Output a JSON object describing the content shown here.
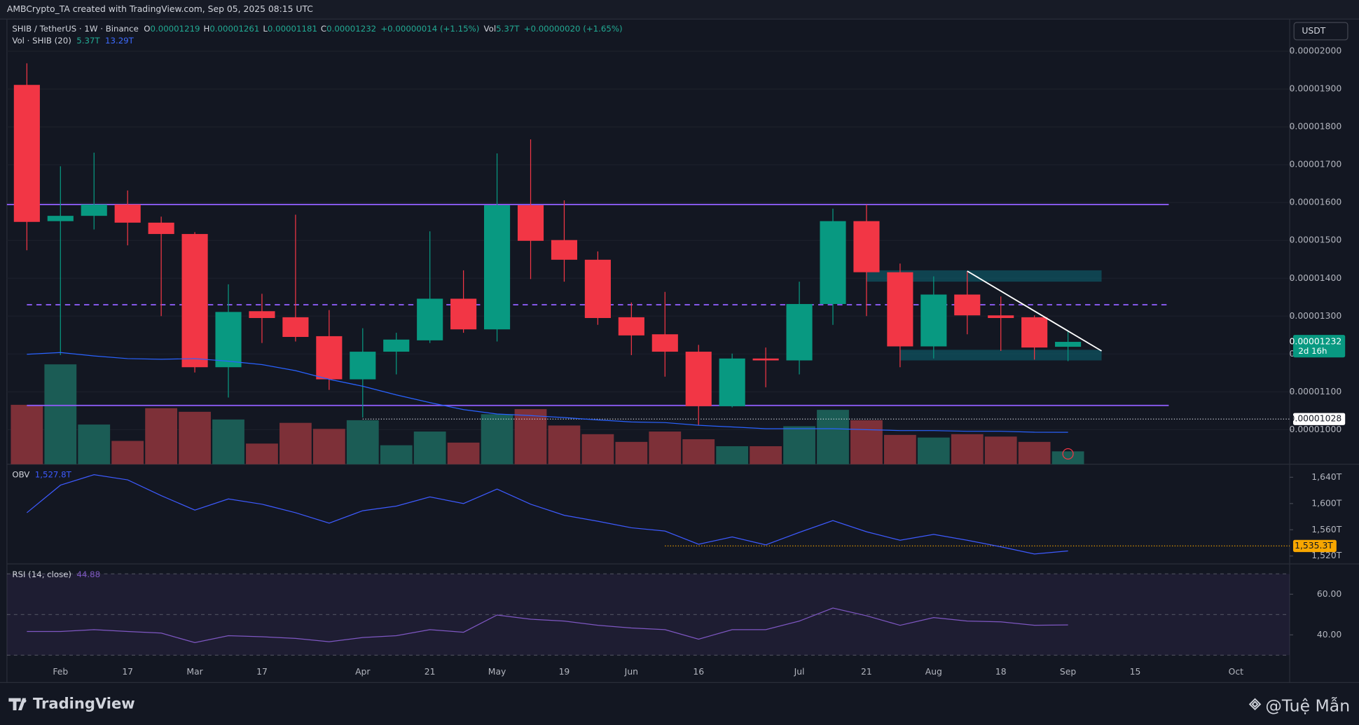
{
  "header": {
    "title": "AMBCrypto_TA created with TradingView.com, Sep 05, 2025 08:15 UTC"
  },
  "currency": "USDT",
  "footer": {
    "brand": "TradingView",
    "watermark": "@Tuệ Mẫn"
  },
  "chart_data": [
    {
      "type": "candlestick",
      "symbol": "SHIB / TetherUS · 1W · Binance",
      "legend": [
        {
          "key": "O",
          "value": "0.00001219"
        },
        {
          "key": "H",
          "value": "0.00001261"
        },
        {
          "key": "L",
          "value": "0.00001181"
        },
        {
          "key": "C",
          "value": "0.00001232"
        }
      ],
      "change": "+0.00000014 (+1.15%)",
      "volume_legend": {
        "key": "Vol",
        "value": "5.37T",
        "change": "+0.00000020 (+1.65%)"
      },
      "volume_indicator": {
        "name": "Vol · SHIB (20)",
        "value": "5.37T",
        "ma": "13.29T"
      },
      "categories": [
        null,
        "Feb",
        null,
        "17",
        null,
        "Mar",
        null,
        "17",
        null,
        null,
        "Apr",
        null,
        "21",
        null,
        "May",
        null,
        "19",
        null,
        "Jun",
        null,
        "16",
        null,
        null,
        "Jul",
        null,
        "21",
        null,
        "Aug",
        null,
        "18",
        null,
        "Sep",
        null,
        "15",
        null,
        null,
        "Oct"
      ],
      "open": [
        1.911e-05,
        1.551e-05,
        1.565e-05,
        1.595e-05,
        1.547e-05,
        1.517e-05,
        1.165e-05,
        1.313e-05,
        1.297e-05,
        1.247e-05,
        1.133e-05,
        1.206e-05,
        1.236e-05,
        1.346e-05,
        1.265e-05,
        1.593e-05,
        1.501e-05,
        1.449e-05,
        1.297e-05,
        1.252e-05,
        1.206e-05,
        1.062e-05,
        1.188e-05,
        1.183e-05,
        1.332e-05,
        1.551e-05,
        1.416e-05,
        1.22e-05,
        1.357e-05,
        1.302e-05,
        1.297e-05,
        1.219e-05,
        null,
        null,
        null,
        null,
        null
      ],
      "high": [
        1.968e-05,
        1.696e-05,
        1.732e-05,
        1.632e-05,
        1.563e-05,
        1.522e-05,
        1.384e-05,
        1.359e-05,
        1.568e-05,
        1.316e-05,
        1.268e-05,
        1.256e-05,
        1.524e-05,
        1.421e-05,
        1.73e-05,
        1.767e-05,
        1.606e-05,
        1.471e-05,
        1.336e-05,
        1.364e-05,
        1.224e-05,
        1.201e-05,
        1.217e-05,
        1.391e-05,
        1.584e-05,
        1.595e-05,
        1.439e-05,
        1.405e-05,
        1.419e-05,
        1.352e-05,
        1.302e-05,
        1.261e-05,
        null,
        null,
        null,
        null,
        null
      ],
      "low": [
        1.474e-05,
        1.197e-05,
        1.529e-05,
        1.487e-05,
        1.3e-05,
        1.151e-05,
        1.085e-05,
        1.229e-05,
        1.233e-05,
        1.105e-05,
        1.032e-05,
        1.146e-05,
        1.229e-05,
        1.256e-05,
        1.233e-05,
        1.398e-05,
        1.391e-05,
        1.277e-05,
        1.197e-05,
        1.14e-05,
        1.011e-05,
        1.059e-05,
        1.112e-05,
        1.146e-05,
        1.277e-05,
        1.3e-05,
        1.165e-05,
        1.188e-05,
        1.252e-05,
        1.208e-05,
        1.185e-05,
        1.181e-05,
        null,
        null,
        null,
        null,
        null
      ],
      "close": [
        1.549e-05,
        1.565e-05,
        1.595e-05,
        1.547e-05,
        1.517e-05,
        1.165e-05,
        1.311e-05,
        1.295e-05,
        1.245e-05,
        1.133e-05,
        1.206e-05,
        1.238e-05,
        1.346e-05,
        1.265e-05,
        1.593e-05,
        1.499e-05,
        1.449e-05,
        1.295e-05,
        1.249e-05,
        1.206e-05,
        1.062e-05,
        1.188e-05,
        1.183e-05,
        1.332e-05,
        1.551e-05,
        1.416e-05,
        1.22e-05,
        1.357e-05,
        1.302e-05,
        1.295e-05,
        1.217e-05,
        1.232e-05,
        null,
        null,
        null,
        null,
        null
      ],
      "volume": [
        24.7,
        41.5,
        16.5,
        9.7,
        23.3,
        21.8,
        18.6,
        8.6,
        17.2,
        14.7,
        18.3,
        7.9,
        13.6,
        9.0,
        20.8,
        22.9,
        16.1,
        12.5,
        9.3,
        13.6,
        10.4,
        7.5,
        7.5,
        15.8,
        22.6,
        18.3,
        12.2,
        11.1,
        12.5,
        11.5,
        9.3,
        5.37,
        null,
        null,
        null,
        null,
        null
      ],
      "volume_ma": [
        45.7,
        46.4,
        45.0,
        43.9,
        43.6,
        43.9,
        42.8,
        41.4,
        38.9,
        35.3,
        32.4,
        28.8,
        25.6,
        22.7,
        20.9,
        20.2,
        19.4,
        18.4,
        17.6,
        17.3,
        16.2,
        15.5,
        14.8,
        14.8,
        14.8,
        14.4,
        14.0,
        14.0,
        13.7,
        13.7,
        13.3,
        13.29,
        null,
        null,
        null,
        null,
        null
      ],
      "up_color": "#089981",
      "down_color": "#f23645",
      "volume_up_color": "#1b5c55",
      "volume_down_color": "#7d3038",
      "volume_ma_color": "#2962ff",
      "ylim": [
        9.085e-06,
        2.085e-05
      ],
      "yticks": [
        {
          "value": 1e-05,
          "label": "0.00001000"
        },
        {
          "value": 1.1e-05,
          "label": "0.00001100"
        },
        {
          "value": 1.2e-05,
          "label": "0.00001200"
        },
        {
          "value": 1.3e-05,
          "label": "0.00001300"
        },
        {
          "value": 1.4e-05,
          "label": "0.00001400"
        },
        {
          "value": 1.5e-05,
          "label": "0.00001500"
        },
        {
          "value": 1.6e-05,
          "label": "0.00001600"
        },
        {
          "value": 1.7e-05,
          "label": "0.00001700"
        },
        {
          "value": 1.8e-05,
          "label": "0.00001800"
        },
        {
          "value": 1.9e-05,
          "label": "0.00001900"
        },
        {
          "value": 2e-05,
          "label": "0.00002000"
        }
      ],
      "grid": true,
      "levels": [
        {
          "value": 1.595e-05,
          "style": "solid"
        },
        {
          "value": 1.33e-05,
          "style": "dashed"
        },
        {
          "value": 1.064e-05,
          "style": "solid"
        }
      ],
      "level_color": "#8c5cf5",
      "zones": [
        {
          "top": 1.421e-05,
          "bottom": 1.391e-05
        },
        {
          "top": 1.211e-05,
          "bottom": 1.183e-05
        }
      ],
      "trendline": [
        1.419e-05,
        1.208e-05
      ],
      "price_marker": {
        "value": 1.028e-05,
        "label": "0.00001028"
      },
      "last_price": {
        "value": 1.232e-05,
        "label": "0.00001232"
      },
      "countdown": "2d 16h"
    },
    {
      "type": "line",
      "name": "OBV",
      "value_label": "1,527.8T",
      "color": "#3d5afe",
      "values": [
        1586,
        1628,
        1644,
        1636,
        1612,
        1590,
        1607,
        1599,
        1586,
        1570,
        1589,
        1596,
        1610,
        1600,
        1622,
        1599,
        1582,
        1573,
        1563,
        1558,
        1538,
        1549,
        1537,
        1556,
        1574,
        1557,
        1544,
        1553,
        1544,
        1534,
        1523,
        1527.8,
        null,
        null,
        null,
        null,
        null
      ],
      "ylim": [
        1508,
        1658.5
      ],
      "yticks": [
        {
          "value": 1520,
          "label": "1,520T"
        },
        {
          "value": 1560,
          "label": "1,560T"
        },
        {
          "value": 1600,
          "label": "1,600T"
        },
        {
          "value": 1640,
          "label": "1,640T"
        }
      ],
      "level": {
        "value": 1535.3,
        "label": "1,535.3T"
      },
      "level_color": "#f7a600"
    },
    {
      "type": "line",
      "name": "RSI (14, close)",
      "value_label": "44.88",
      "color": "#7e57c2",
      "values": [
        41.7,
        41.7,
        42.6,
        41.7,
        40.9,
        36.2,
        39.6,
        39.1,
        38.3,
        36.6,
        38.7,
        39.6,
        42.6,
        41.3,
        49.8,
        47.7,
        46.8,
        44.7,
        43.4,
        42.6,
        37.9,
        42.6,
        42.6,
        46.8,
        53.2,
        49.4,
        44.7,
        48.5,
        46.8,
        46.4,
        44.7,
        44.88,
        null,
        null,
        null,
        null,
        null
      ],
      "ylim": [
        17.4,
        74.5
      ],
      "yticks": [
        {
          "value": 40,
          "label": "40.00"
        },
        {
          "value": 60,
          "label": "60.00"
        }
      ],
      "bands": [
        30,
        70
      ],
      "mid": 50
    }
  ]
}
